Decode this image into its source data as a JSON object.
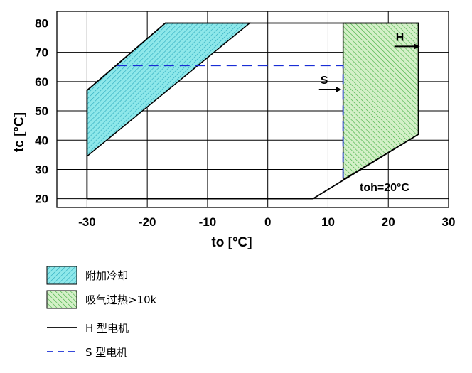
{
  "chart_data": {
    "type": "area",
    "xlabel": "to [°C]",
    "ylabel": "tc [°C]",
    "xlim": [
      -35,
      30
    ],
    "ylim": [
      17,
      84
    ],
    "x_ticks": [
      -30,
      -20,
      -10,
      0,
      10,
      20,
      30
    ],
    "y_ticks": [
      20,
      30,
      40,
      50,
      60,
      70,
      80
    ],
    "grid": true,
    "annotation": "toh=20°C",
    "series": [
      {
        "name": "H 型电机",
        "style": "solid",
        "color": "#000000",
        "points": [
          [
            -30,
            20
          ],
          [
            7.5,
            20
          ],
          [
            25,
            42
          ],
          [
            25,
            80
          ],
          [
            -17,
            80
          ],
          [
            -30,
            57
          ],
          [
            -30,
            20
          ]
        ]
      },
      {
        "name": "S 型电机",
        "style": "dashed",
        "color": "#1a2fd6",
        "points": [
          [
            -25,
            65.5
          ],
          [
            12.5,
            65.5
          ],
          [
            12.5,
            26.5
          ]
        ]
      }
    ],
    "regions": [
      {
        "name": "附加冷却",
        "color": "#7fe3e3",
        "hatch": "#3cb8c8",
        "points": [
          [
            -30,
            57
          ],
          [
            -17,
            80
          ],
          [
            -3,
            80
          ],
          [
            -30,
            34.5
          ]
        ]
      },
      {
        "name": "吸气过热>10k",
        "color": "#c8ecb8",
        "hatch": "#3fae3f",
        "points": [
          [
            12.5,
            80
          ],
          [
            25,
            80
          ],
          [
            25,
            42
          ],
          [
            12.5,
            26.5
          ]
        ]
      }
    ],
    "arrows": [
      {
        "label": "H",
        "x": 21,
        "y": 72,
        "dx": 4
      },
      {
        "label": "S",
        "x": 8.5,
        "y": 57.3,
        "dx": 3.5
      }
    ],
    "legend": {
      "placement": "bottom-left",
      "entries": [
        {
          "label": "附加冷却",
          "kind": "swatch-cyan"
        },
        {
          "label": "吸气过热>10k",
          "kind": "swatch-green"
        },
        {
          "label": "H 型电机",
          "kind": "line-solid"
        },
        {
          "label": "S 型电机",
          "kind": "line-dashed"
        }
      ]
    }
  }
}
